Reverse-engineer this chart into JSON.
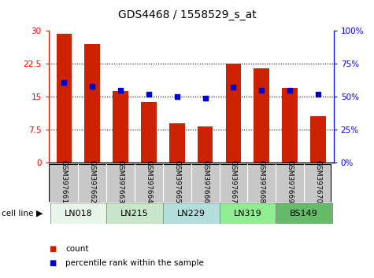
{
  "title": "GDS4468 / 1558529_s_at",
  "samples": [
    "GSM397661",
    "GSM397662",
    "GSM397663",
    "GSM397664",
    "GSM397665",
    "GSM397666",
    "GSM397667",
    "GSM397668",
    "GSM397669",
    "GSM397670"
  ],
  "counts": [
    29.2,
    27.0,
    16.2,
    13.8,
    9.0,
    8.2,
    22.5,
    21.5,
    17.0,
    10.5
  ],
  "percentiles": [
    61,
    58,
    55,
    52,
    50,
    49,
    57,
    55,
    55,
    52
  ],
  "cell_lines": [
    {
      "name": "LN018",
      "start": 0,
      "end": 2
    },
    {
      "name": "LN215",
      "start": 2,
      "end": 4
    },
    {
      "name": "LN229",
      "start": 4,
      "end": 6
    },
    {
      "name": "LN319",
      "start": 6,
      "end": 8
    },
    {
      "name": "BS149",
      "start": 8,
      "end": 10
    }
  ],
  "cell_line_colors": [
    "#e8f5e9",
    "#c8e6c9",
    "#b2dfdb",
    "#90ee90",
    "#66bb6a"
  ],
  "bar_color": "#cc2200",
  "dot_color": "#0000cc",
  "ylim_left": [
    0,
    30
  ],
  "ylim_right": [
    0,
    100
  ],
  "yticks_left": [
    0,
    7.5,
    15,
    22.5,
    30
  ],
  "yticks_right": [
    0,
    25,
    50,
    75,
    100
  ],
  "ytick_labels_left": [
    "0",
    "7.5",
    "15",
    "22.5",
    "30"
  ],
  "ytick_labels_right": [
    "0%",
    "25%",
    "50%",
    "75%",
    "100%"
  ],
  "sample_bg": "#c8c8c8",
  "legend_items": [
    {
      "label": "count",
      "color": "#cc2200"
    },
    {
      "label": "percentile rank within the sample",
      "color": "#0000cc"
    }
  ]
}
